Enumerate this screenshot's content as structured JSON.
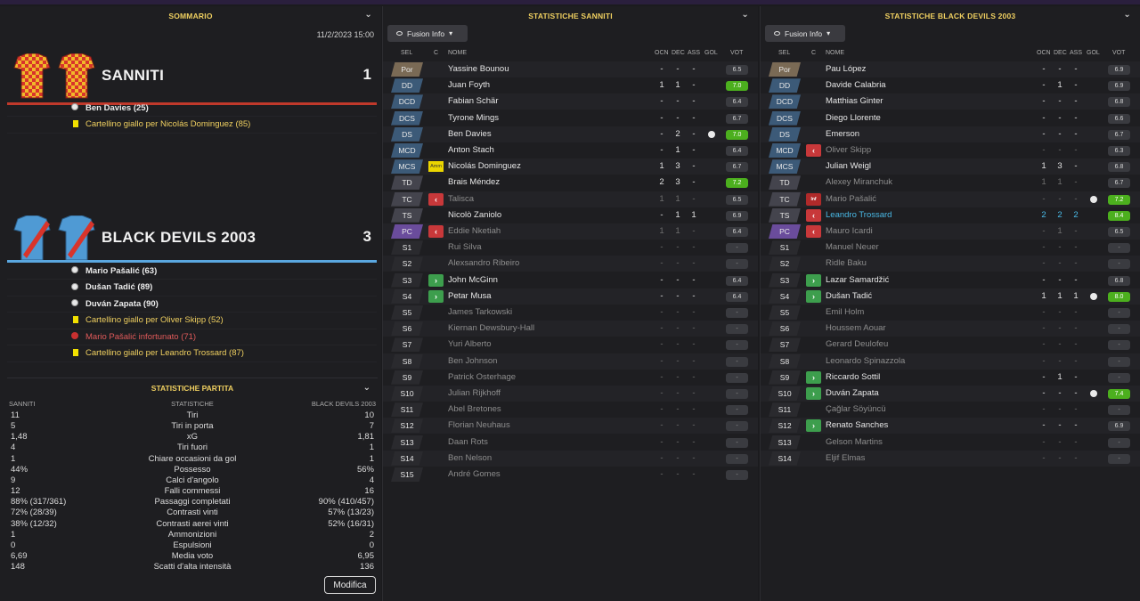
{
  "summary": {
    "title": "SOMMARIO",
    "date": "11/2/2023 15:00",
    "home": {
      "name": "SANNITI",
      "score": "1",
      "bar_color": "#c0392b",
      "events": [
        {
          "type": "goal",
          "text": "Ben Davies (25)",
          "bold": true
        },
        {
          "type": "yellow",
          "text": "Cartellino giallo per Nicolás Dominguez (85)",
          "bold": false
        }
      ]
    },
    "away": {
      "name": "BLACK DEVILS 2003",
      "score": "3",
      "bar_color": "#5aa7e0",
      "events": [
        {
          "type": "goal",
          "text": "Mario Pašalić (63)",
          "bold": true
        },
        {
          "type": "goal",
          "text": "Dušan Tadić (89)",
          "bold": true
        },
        {
          "type": "goal",
          "text": "Duván Zapata (90)",
          "bold": true
        },
        {
          "type": "yellow",
          "text": "Cartellino giallo per Oliver Skipp (52)",
          "bold": false
        },
        {
          "type": "injury",
          "text": "Mario Pašalić infortunato (71)",
          "bold": false
        },
        {
          "type": "yellow",
          "text": "Cartellino giallo per Leandro Trossard (87)",
          "bold": false
        }
      ]
    }
  },
  "match_stats": {
    "title": "STATISTICHE PARTITA",
    "col_home": "SANNITI",
    "col_label": "STATISTICHE",
    "col_away": "BLACK DEVILS 2003",
    "rows": [
      {
        "home": "11",
        "label": "Tiri",
        "away": "10"
      },
      {
        "home": "5",
        "label": "Tiri in porta",
        "away": "7"
      },
      {
        "home": "1,48",
        "label": "xG",
        "away": "1,81"
      },
      {
        "home": "4",
        "label": "Tiri fuori",
        "away": "1"
      },
      {
        "home": "1",
        "label": "Chiare occasioni da gol",
        "away": "1"
      },
      {
        "home": "44%",
        "label": "Possesso",
        "away": "56%"
      },
      {
        "home": "9",
        "label": "Calci d'angolo",
        "away": "4"
      },
      {
        "home": "12",
        "label": "Falli commessi",
        "away": "16"
      },
      {
        "home": "88% (317/361)",
        "label": "Passaggi completati",
        "away": "90% (410/457)"
      },
      {
        "home": "72% (28/39)",
        "label": "Contrasti vinti",
        "away": "57% (13/23)"
      },
      {
        "home": "38% (12/32)",
        "label": "Contrasti aerei vinti",
        "away": "52% (16/31)"
      },
      {
        "home": "1",
        "label": "Ammonizioni",
        "away": "2"
      },
      {
        "home": "0",
        "label": "Espulsioni",
        "away": "0"
      },
      {
        "home": "6,69",
        "label": "Media voto",
        "away": "6,95"
      },
      {
        "home": "148",
        "label": "Scatti d'alta intensità",
        "away": "136"
      }
    ],
    "edit_label": "Modifica"
  },
  "lineup_headers": {
    "sel": "SEL",
    "c": "C",
    "name": "NOME",
    "ocn": "OCN",
    "dec": "DEC",
    "ass": "ASS",
    "gol": "GOL",
    "vot": "VOT"
  },
  "fusion_label": "Fusion Info",
  "home_table": {
    "title": "STATISTICHE SANNITI",
    "players": [
      {
        "pos": "Por",
        "name": "Yassine Bounou",
        "ocn": "-",
        "dec": "-",
        "ass": "-",
        "gol": false,
        "vot": "6.5",
        "good": false,
        "mark": "",
        "dim": false
      },
      {
        "pos": "DD",
        "name": "Juan Foyth",
        "ocn": "1",
        "dec": "1",
        "ass": "-",
        "gol": false,
        "vot": "7.0",
        "good": true,
        "mark": "",
        "dim": false
      },
      {
        "pos": "DCD",
        "name": "Fabian Schär",
        "ocn": "-",
        "dec": "-",
        "ass": "-",
        "gol": false,
        "vot": "6.4",
        "good": false,
        "mark": "",
        "dim": false
      },
      {
        "pos": "DCS",
        "name": "Tyrone Mings",
        "ocn": "-",
        "dec": "-",
        "ass": "-",
        "gol": false,
        "vot": "6.7",
        "good": false,
        "mark": "",
        "dim": false
      },
      {
        "pos": "DS",
        "name": "Ben Davies",
        "ocn": "-",
        "dec": "2",
        "ass": "-",
        "gol": true,
        "vot": "7.0",
        "good": true,
        "mark": "",
        "dim": false
      },
      {
        "pos": "MCD",
        "name": "Anton Stach",
        "ocn": "-",
        "dec": "1",
        "ass": "-",
        "gol": false,
        "vot": "6.4",
        "good": false,
        "mark": "",
        "dim": false
      },
      {
        "pos": "MCS",
        "name": "Nicolás Dominguez",
        "ocn": "1",
        "dec": "3",
        "ass": "-",
        "gol": false,
        "vot": "6.7",
        "good": false,
        "mark": "amm",
        "dim": false
      },
      {
        "pos": "TD",
        "name": "Brais Méndez",
        "ocn": "2",
        "dec": "3",
        "ass": "-",
        "gol": false,
        "vot": "7.2",
        "good": true,
        "mark": "",
        "dim": false
      },
      {
        "pos": "TC",
        "name": "Talisca",
        "ocn": "1",
        "dec": "1",
        "ass": "-",
        "gol": false,
        "vot": "6.5",
        "good": false,
        "mark": "out",
        "dim": true
      },
      {
        "pos": "TS",
        "name": "Nicolò Zaniolo",
        "ocn": "-",
        "dec": "1",
        "ass": "1",
        "gol": false,
        "vot": "6.9",
        "good": false,
        "mark": "",
        "dim": false
      },
      {
        "pos": "PC",
        "name": "Eddie Nketiah",
        "ocn": "1",
        "dec": "1",
        "ass": "-",
        "gol": false,
        "vot": "6.4",
        "good": false,
        "mark": "out",
        "dim": true
      },
      {
        "pos": "S1",
        "name": "Rui Silva",
        "ocn": "-",
        "dec": "-",
        "ass": "-",
        "gol": false,
        "vot": "-",
        "good": false,
        "mark": "",
        "dim": true
      },
      {
        "pos": "S2",
        "name": "Alexsandro Ribeiro",
        "ocn": "-",
        "dec": "-",
        "ass": "-",
        "gol": false,
        "vot": "-",
        "good": false,
        "mark": "",
        "dim": true
      },
      {
        "pos": "S3",
        "name": "John McGinn",
        "ocn": "-",
        "dec": "-",
        "ass": "-",
        "gol": false,
        "vot": "6.4",
        "good": false,
        "mark": "in",
        "dim": false
      },
      {
        "pos": "S4",
        "name": "Petar Musa",
        "ocn": "-",
        "dec": "-",
        "ass": "-",
        "gol": false,
        "vot": "6.4",
        "good": false,
        "mark": "in",
        "dim": false
      },
      {
        "pos": "S5",
        "name": "James Tarkowski",
        "ocn": "-",
        "dec": "-",
        "ass": "-",
        "gol": false,
        "vot": "-",
        "good": false,
        "mark": "",
        "dim": true
      },
      {
        "pos": "S6",
        "name": "Kiernan Dewsbury-Hall",
        "ocn": "-",
        "dec": "-",
        "ass": "-",
        "gol": false,
        "vot": "-",
        "good": false,
        "mark": "",
        "dim": true
      },
      {
        "pos": "S7",
        "name": "Yuri Alberto",
        "ocn": "-",
        "dec": "-",
        "ass": "-",
        "gol": false,
        "vot": "-",
        "good": false,
        "mark": "",
        "dim": true
      },
      {
        "pos": "S8",
        "name": "Ben Johnson",
        "ocn": "-",
        "dec": "-",
        "ass": "-",
        "gol": false,
        "vot": "-",
        "good": false,
        "mark": "",
        "dim": true
      },
      {
        "pos": "S9",
        "name": "Patrick Osterhage",
        "ocn": "-",
        "dec": "-",
        "ass": "-",
        "gol": false,
        "vot": "-",
        "good": false,
        "mark": "",
        "dim": true
      },
      {
        "pos": "S10",
        "name": "Julian Rijkhoff",
        "ocn": "-",
        "dec": "-",
        "ass": "-",
        "gol": false,
        "vot": "-",
        "good": false,
        "mark": "",
        "dim": true
      },
      {
        "pos": "S11",
        "name": "Abel Bretones",
        "ocn": "-",
        "dec": "-",
        "ass": "-",
        "gol": false,
        "vot": "-",
        "good": false,
        "mark": "",
        "dim": true
      },
      {
        "pos": "S12",
        "name": "Florian Neuhaus",
        "ocn": "-",
        "dec": "-",
        "ass": "-",
        "gol": false,
        "vot": "-",
        "good": false,
        "mark": "",
        "dim": true
      },
      {
        "pos": "S13",
        "name": "Daan Rots",
        "ocn": "-",
        "dec": "-",
        "ass": "-",
        "gol": false,
        "vot": "-",
        "good": false,
        "mark": "",
        "dim": true
      },
      {
        "pos": "S14",
        "name": "Ben Nelson",
        "ocn": "-",
        "dec": "-",
        "ass": "-",
        "gol": false,
        "vot": "-",
        "good": false,
        "mark": "",
        "dim": true
      },
      {
        "pos": "S15",
        "name": "André Gomes",
        "ocn": "-",
        "dec": "-",
        "ass": "-",
        "gol": false,
        "vot": "-",
        "good": false,
        "mark": "",
        "dim": true
      }
    ]
  },
  "away_table": {
    "title": "STATISTICHE BLACK DEVILS 2003",
    "players": [
      {
        "pos": "Por",
        "name": "Pau López",
        "ocn": "-",
        "dec": "-",
        "ass": "-",
        "gol": false,
        "vot": "6.9",
        "good": false,
        "mark": "",
        "dim": false
      },
      {
        "pos": "DD",
        "name": "Davide Calabria",
        "ocn": "-",
        "dec": "1",
        "ass": "-",
        "gol": false,
        "vot": "6.9",
        "good": false,
        "mark": "",
        "dim": false
      },
      {
        "pos": "DCD",
        "name": "Matthias Ginter",
        "ocn": "-",
        "dec": "-",
        "ass": "-",
        "gol": false,
        "vot": "6.8",
        "good": false,
        "mark": "",
        "dim": false
      },
      {
        "pos": "DCS",
        "name": "Diego Llorente",
        "ocn": "-",
        "dec": "-",
        "ass": "-",
        "gol": false,
        "vot": "6.6",
        "good": false,
        "mark": "",
        "dim": false
      },
      {
        "pos": "DS",
        "name": "Emerson",
        "ocn": "-",
        "dec": "-",
        "ass": "-",
        "gol": false,
        "vot": "6.7",
        "good": false,
        "mark": "",
        "dim": false
      },
      {
        "pos": "MCD",
        "name": "Oliver Skipp",
        "ocn": "-",
        "dec": "-",
        "ass": "-",
        "gol": false,
        "vot": "6.3",
        "good": false,
        "mark": "out",
        "dim": true
      },
      {
        "pos": "MCS",
        "name": "Julian Weigl",
        "ocn": "1",
        "dec": "3",
        "ass": "-",
        "gol": false,
        "vot": "6.8",
        "good": false,
        "mark": "",
        "dim": false
      },
      {
        "pos": "TD",
        "name": "Alexey Miranchuk",
        "ocn": "1",
        "dec": "1",
        "ass": "-",
        "gol": false,
        "vot": "6.7",
        "good": false,
        "mark": "",
        "dim": true
      },
      {
        "pos": "TC",
        "name": "Mario Pašalić",
        "ocn": "-",
        "dec": "-",
        "ass": "-",
        "gol": true,
        "vot": "7.2",
        "good": true,
        "mark": "inj",
        "dim": true
      },
      {
        "pos": "TS",
        "name": "Leandro Trossard",
        "ocn": "2",
        "dec": "2",
        "ass": "2",
        "gol": false,
        "vot": "8.4",
        "good": true,
        "mark": "out",
        "dim": false,
        "hl": true
      },
      {
        "pos": "PC",
        "name": "Mauro Icardi",
        "ocn": "-",
        "dec": "1",
        "ass": "-",
        "gol": false,
        "vot": "6.5",
        "good": false,
        "mark": "out",
        "dim": true
      },
      {
        "pos": "S1",
        "name": "Manuel Neuer",
        "ocn": "-",
        "dec": "-",
        "ass": "-",
        "gol": false,
        "vot": "-",
        "good": false,
        "mark": "",
        "dim": true
      },
      {
        "pos": "S2",
        "name": "Ridle Baku",
        "ocn": "-",
        "dec": "-",
        "ass": "-",
        "gol": false,
        "vot": "-",
        "good": false,
        "mark": "",
        "dim": true
      },
      {
        "pos": "S3",
        "name": "Lazar Samardžić",
        "ocn": "-",
        "dec": "-",
        "ass": "-",
        "gol": false,
        "vot": "6.8",
        "good": false,
        "mark": "in",
        "dim": false
      },
      {
        "pos": "S4",
        "name": "Dušan Tadić",
        "ocn": "1",
        "dec": "1",
        "ass": "1",
        "gol": true,
        "vot": "8.0",
        "good": true,
        "mark": "in",
        "dim": false
      },
      {
        "pos": "S5",
        "name": "Emil Holm",
        "ocn": "-",
        "dec": "-",
        "ass": "-",
        "gol": false,
        "vot": "-",
        "good": false,
        "mark": "",
        "dim": true
      },
      {
        "pos": "S6",
        "name": "Houssem Aouar",
        "ocn": "-",
        "dec": "-",
        "ass": "-",
        "gol": false,
        "vot": "-",
        "good": false,
        "mark": "",
        "dim": true
      },
      {
        "pos": "S7",
        "name": "Gerard Deulofeu",
        "ocn": "-",
        "dec": "-",
        "ass": "-",
        "gol": false,
        "vot": "-",
        "good": false,
        "mark": "",
        "dim": true
      },
      {
        "pos": "S8",
        "name": "Leonardo Spinazzola",
        "ocn": "-",
        "dec": "-",
        "ass": "-",
        "gol": false,
        "vot": "-",
        "good": false,
        "mark": "",
        "dim": true
      },
      {
        "pos": "S9",
        "name": "Riccardo Sottil",
        "ocn": "-",
        "dec": "1",
        "ass": "-",
        "gol": false,
        "vot": "-",
        "good": false,
        "mark": "in",
        "dim": false
      },
      {
        "pos": "S10",
        "name": "Duván Zapata",
        "ocn": "-",
        "dec": "-",
        "ass": "-",
        "gol": true,
        "vot": "7.4",
        "good": true,
        "mark": "in",
        "dim": false
      },
      {
        "pos": "S11",
        "name": "Çağlar Söyüncü",
        "ocn": "-",
        "dec": "-",
        "ass": "-",
        "gol": false,
        "vot": "-",
        "good": false,
        "mark": "",
        "dim": true
      },
      {
        "pos": "S12",
        "name": "Renato Sanches",
        "ocn": "-",
        "dec": "-",
        "ass": "-",
        "gol": false,
        "vot": "6.9",
        "good": false,
        "mark": "in",
        "dim": false
      },
      {
        "pos": "S13",
        "name": "Gelson Martins",
        "ocn": "-",
        "dec": "-",
        "ass": "-",
        "gol": false,
        "vot": "-",
        "good": false,
        "mark": "",
        "dim": true
      },
      {
        "pos": "S14",
        "name": "Eljif Elmas",
        "ocn": "-",
        "dec": "-",
        "ass": "-",
        "gol": false,
        "vot": "-",
        "good": false,
        "mark": "",
        "dim": true
      }
    ]
  },
  "colors": {
    "gk": "#7a6a55",
    "def": "#3c5a78",
    "mid": "#44444d",
    "att": "#5a5a66",
    "fwd": "#6a4c9c",
    "sub": "#2a2a2e",
    "accent": "#f0d060",
    "good": "#4caf1e"
  },
  "amm_label": "Amm",
  "inj_label": "Inf"
}
